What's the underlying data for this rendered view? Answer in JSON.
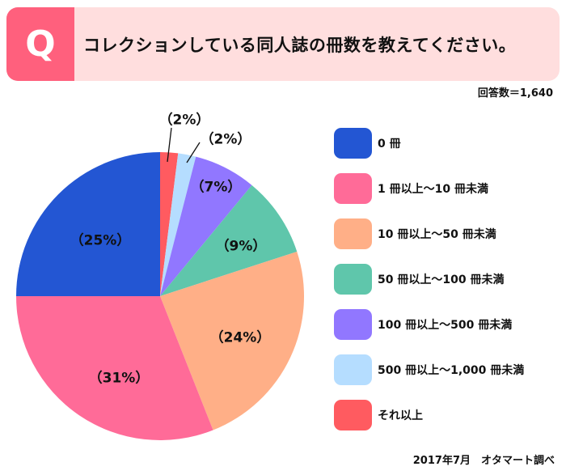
{
  "header": {
    "badge": "Q",
    "title": "コレクションしている同人誌の冊数を教えてください。",
    "badge_color": "#FF607D",
    "background_color": "#FFDEDE"
  },
  "respondents": "回答数＝1,640",
  "footer": {
    "source": "2017年7月　オタマート調べ"
  },
  "legend": {
    "items": [
      {
        "label": "0 冊",
        "color": "#2356D3"
      },
      {
        "label": "1 冊以上～10 冊未満",
        "color": "#FF6B98"
      },
      {
        "label": "10 冊以上～50 冊未満",
        "color": "#FFAF87"
      },
      {
        "label": "50 冊以上～100 冊未満",
        "color": "#5FC6AB"
      },
      {
        "label": "100 冊以上～500 冊未満",
        "color": "#9177FF"
      },
      {
        "label": "500 冊以上～1,000 冊未満",
        "color": "#B5DDFF"
      },
      {
        "label": "それ以上",
        "color": "#FF5B60"
      }
    ]
  },
  "slice_labels": {
    "zero": "（25%）",
    "one_to_ten": "（31%）",
    "ten_to_fifty": "（24%）",
    "fifty_to_hundred": "（9%）",
    "hundred_to_fivehundred": "（7%）",
    "fivehundred_to_thousand": "（2%）",
    "more": "（2%）"
  },
  "chart_data": {
    "type": "pie",
    "title": "コレクションしている同人誌の冊数を教えてください。",
    "subtitle": "回答数＝1,640",
    "categories": [
      "0 冊",
      "1 冊以上～10 冊未満",
      "10 冊以上～50 冊未満",
      "50 冊以上～100 冊未満",
      "100 冊以上～500 冊未満",
      "500 冊以上～1,000 冊未満",
      "それ以上"
    ],
    "values": [
      25,
      31,
      24,
      9,
      7,
      2,
      2
    ],
    "unit": "%",
    "colors": [
      "#2356D3",
      "#FF6B98",
      "#FFAF87",
      "#5FC6AB",
      "#9177FF",
      "#B5DDFF",
      "#FF5B60"
    ],
    "drawing_order_clockwise_from_top": [
      "それ以上",
      "500 冊以上～1,000 冊未満",
      "100 冊以上～500 冊未満",
      "50 冊以上～100 冊未満",
      "10 冊以上～50 冊未満",
      "1 冊以上～10 冊未満",
      "0 冊"
    ],
    "legend_position": "right",
    "annotation": "2017年7月　オタマート調べ"
  }
}
